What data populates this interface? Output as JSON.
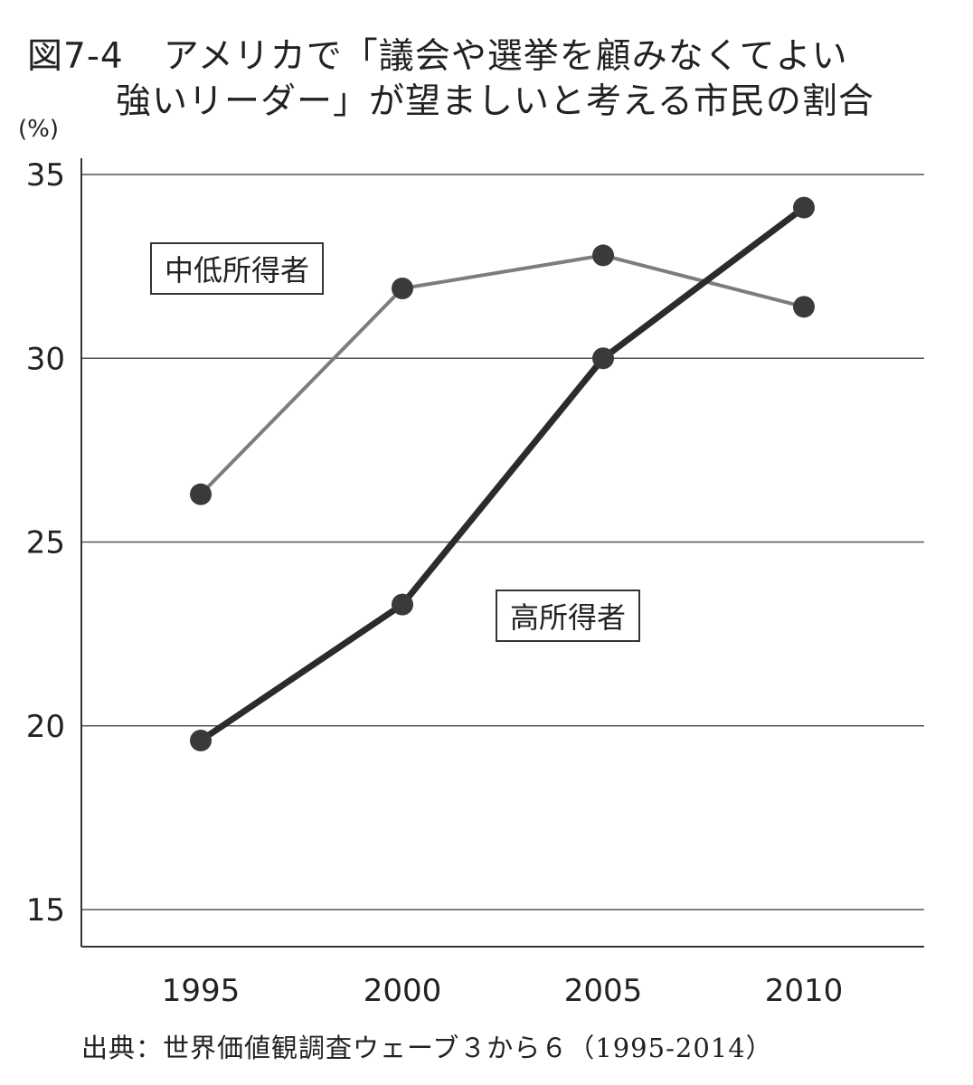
{
  "title": {
    "figure_number": "図7-4",
    "line1": "アメリカで「議会や選挙を顧みなくてよい",
    "line2": "強いリーダー」が望ましいと考える市民の割合"
  },
  "source": "出典：世界価値観調査ウェーブ３から６（1995-2014）",
  "colors": {
    "low_middle_income": "#7d7d7d",
    "high_income": "#2b2b2b",
    "grid": "#555555",
    "marker": "#3a3a3a"
  },
  "chart_data": {
    "type": "line",
    "title": "アメリカで「議会や選挙を顧みなくてよい強いリーダー」が望ましいと考える市民の割合",
    "xlabel": "",
    "ylabel": "(%)",
    "x": [
      "1995",
      "2000",
      "2005",
      "2010"
    ],
    "ylim": [
      15,
      35
    ],
    "yticks": [
      "15",
      "20",
      "25",
      "30",
      "35"
    ],
    "grid": "horizontal",
    "series": [
      {
        "name": "中低所得者",
        "values": [
          26.3,
          31.9,
          32.8,
          31.4
        ]
      },
      {
        "name": "高所得者",
        "values": [
          19.6,
          23.3,
          30.0,
          34.1
        ]
      }
    ]
  }
}
